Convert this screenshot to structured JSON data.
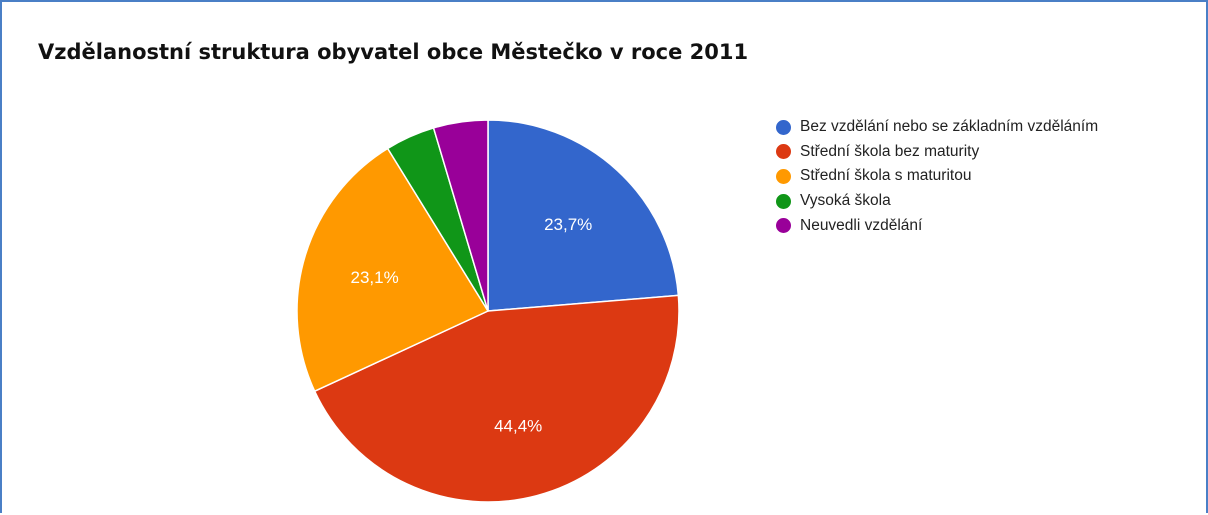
{
  "chart_data": {
    "type": "pie",
    "title": "Vzdělanostní struktura obyvatel obce Městečko v roce 2011",
    "legend_position": "right",
    "start_angle_deg": 0,
    "direction": "clockwise",
    "slices": [
      {
        "name": "Bez vzdělání nebo se základním vzděláním",
        "value": 23.7,
        "label": "23,7%",
        "color": "#3366cc"
      },
      {
        "name": "Střední škola bez maturity",
        "value": 44.4,
        "label": "44,4%",
        "color": "#dc3912"
      },
      {
        "name": "Střední škola s maturitou",
        "value": 23.1,
        "label": "23,1%",
        "color": "#ff9900"
      },
      {
        "name": "Vysoká škola",
        "value": 4.2,
        "label": "",
        "color": "#109618"
      },
      {
        "name": "Neuvedli vzdělání",
        "value": 4.6,
        "label": "",
        "color": "#990099"
      }
    ]
  }
}
